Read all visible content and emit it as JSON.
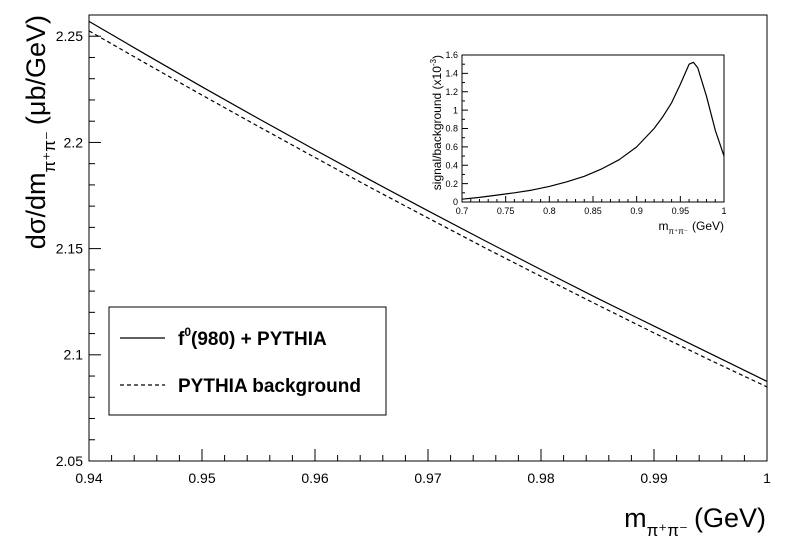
{
  "chart_data": [
    {
      "type": "line",
      "title": "",
      "xlabel": {
        "main": "m",
        "sub": "π⁺π⁻",
        "unit": "(GeV)"
      },
      "ylabel": {
        "main": "dσ/dm",
        "sub": "π⁺π⁻",
        "unit": "(μb/GeV)"
      },
      "xlim": [
        0.94,
        1.0
      ],
      "ylim": [
        2.05,
        2.26
      ],
      "xticks": [
        "0.94",
        "0.95",
        "0.96",
        "0.97",
        "0.98",
        "0.99",
        "1"
      ],
      "yticks": [
        "2.05",
        "2.1",
        "2.15",
        "2.2",
        "2.25"
      ],
      "grid": false,
      "legend_position": "bottom-left",
      "series": [
        {
          "name": "f⁰(980) + PYTHIA",
          "legend": {
            "main": "f",
            "sup": "0",
            "rest": "(980) + PYTHIA"
          },
          "style": "solid",
          "color": "#000000",
          "x": [
            0.94,
            0.945,
            0.95,
            0.955,
            0.96,
            0.965,
            0.97,
            0.975,
            0.98,
            0.985,
            0.99,
            0.995,
            1.0
          ],
          "y": [
            2.257,
            2.2415,
            2.2262,
            2.2112,
            2.1965,
            2.182,
            2.1678,
            2.1538,
            2.1401,
            2.1266,
            2.1135,
            2.1005,
            2.0875
          ]
        },
        {
          "name": "PYTHIA background",
          "legend": {
            "main": "PYTHIA background",
            "sup": "",
            "rest": ""
          },
          "style": "dashed",
          "color": "#000000",
          "x": [
            0.94,
            0.945,
            0.95,
            0.955,
            0.96,
            0.965,
            0.97,
            0.975,
            0.98,
            0.985,
            0.99,
            0.995,
            1.0
          ],
          "y": [
            2.2525,
            2.2373,
            2.2223,
            2.2075,
            2.1929,
            2.1785,
            2.1644,
            2.1505,
            2.1369,
            2.1235,
            2.1103,
            2.0974,
            2.0849
          ]
        }
      ]
    },
    {
      "type": "line",
      "title": "",
      "xlabel": {
        "main": "m",
        "sub": "π⁺π⁻",
        "unit": "(GeV)"
      },
      "ylabel": {
        "main": "signal/background (x10",
        "sup": "-3",
        "rest": ")"
      },
      "xlim": [
        0.7,
        1.0
      ],
      "ylim": [
        0,
        1.6
      ],
      "xticks": [
        "0.7",
        "0.75",
        "0.8",
        "0.85",
        "0.9",
        "0.95",
        "1"
      ],
      "yticks": [
        "0",
        "0.2",
        "0.4",
        "0.6",
        "0.8",
        "1",
        "1.2",
        "1.4",
        "1.6"
      ],
      "grid": false,
      "series": [
        {
          "style": "solid",
          "color": "#000000",
          "x": [
            0.7,
            0.72,
            0.74,
            0.76,
            0.78,
            0.8,
            0.82,
            0.84,
            0.86,
            0.88,
            0.9,
            0.92,
            0.93,
            0.94,
            0.95,
            0.96,
            0.965,
            0.97,
            0.98,
            0.99,
            1.0
          ],
          "y": [
            0.03,
            0.05,
            0.075,
            0.1,
            0.13,
            0.17,
            0.22,
            0.28,
            0.36,
            0.46,
            0.6,
            0.8,
            0.93,
            1.08,
            1.28,
            1.5,
            1.52,
            1.46,
            1.15,
            0.78,
            0.5
          ]
        }
      ]
    }
  ]
}
